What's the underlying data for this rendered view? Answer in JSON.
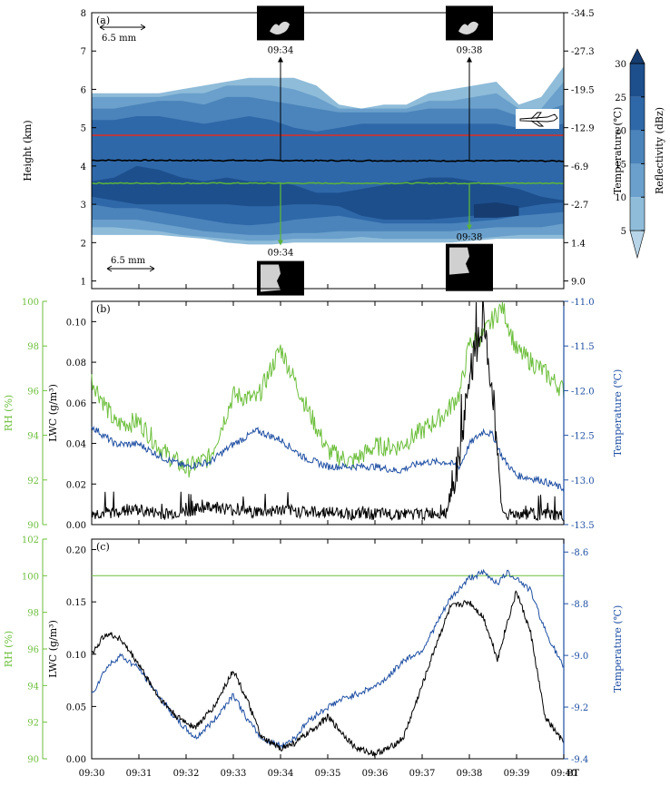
{
  "colors": {
    "lwc": "#000000",
    "rh": "#6dbf3c",
    "temperature": "#1f4fa3",
    "rh_axis": "#6dbf3c",
    "temp_axis": "#1f4fa3",
    "red_line": "#d0312d",
    "green_line": "#5bb43a",
    "refl_levels": [
      "#b7d4e8",
      "#8fbcd9",
      "#6aa0cb",
      "#4b84bb",
      "#2f68a8",
      "#1d4f8d",
      "#163c70"
    ]
  },
  "chart_data": [
    {
      "type": "heatmap",
      "panel_label": "(a)",
      "ylabel": "Height (km)",
      "y2label": "Temperature (℃)",
      "ylim": [
        0.8,
        8
      ],
      "yticks": [
        1,
        2,
        3,
        4,
        5,
        6,
        7,
        8
      ],
      "y2_ticks": [
        {
          "height": 8,
          "label": "-34.5"
        },
        {
          "height": 7,
          "label": "-27.3"
        },
        {
          "height": 6,
          "label": "-19.5"
        },
        {
          "height": 5,
          "label": "-12.9"
        },
        {
          "height": 4,
          "label": "-6.9"
        },
        {
          "height": 3,
          "label": "-2.7"
        },
        {
          "height": 2,
          "label": "1.4"
        },
        {
          "height": 1,
          "label": "9.0"
        }
      ],
      "colorbar": {
        "label": "Reflectivity (dBz)",
        "ticks": [
          5,
          10,
          15,
          20,
          25,
          30
        ]
      },
      "annotations": [
        {
          "text": "09:34",
          "time": 34.0,
          "height": 6.9,
          "position": "above"
        },
        {
          "text": "09:38",
          "time": 38.0,
          "height": 6.9,
          "position": "above"
        },
        {
          "text": "09:34",
          "time": 34.0,
          "height": 1.9,
          "position": "below"
        },
        {
          "text": "09:38",
          "time": 38.0,
          "height": 2.3,
          "position": "below"
        }
      ],
      "scale_bars": [
        {
          "label": "6.5 mm"
        },
        {
          "label": "6.5 mm"
        }
      ],
      "flight_levels": {
        "black_line_km": 4.15,
        "red_line_km": 4.8,
        "green_line_km": 3.55
      },
      "cloud_layers": [
        {
          "dbz": 5,
          "top": [
            5.9,
            5.9,
            5.9,
            5.9,
            6.0,
            6.1,
            6.2,
            6.3,
            6.3,
            6.3,
            6.1,
            5.6,
            5.5,
            5.6,
            5.6,
            5.9,
            6.0,
            6.1,
            6.2,
            5.6,
            5.8,
            6.6
          ],
          "base": [
            2.2,
            2.2,
            2.2,
            2.2,
            2.15,
            2.1,
            2.0,
            1.95,
            1.95,
            2.0,
            2.0,
            2.0,
            2.0,
            2.0,
            2.0,
            2.0,
            2.0,
            2.05,
            2.1,
            2.1,
            2.1,
            2.1
          ]
        },
        {
          "dbz": 10,
          "top": [
            5.8,
            5.8,
            5.8,
            5.8,
            5.9,
            5.9,
            6.1,
            6.1,
            6.1,
            6.0,
            5.8,
            5.5,
            5.5,
            5.5,
            5.5,
            5.7,
            5.7,
            5.8,
            5.9,
            5.5,
            5.5,
            6.2
          ],
          "base": [
            2.4,
            2.4,
            2.35,
            2.3,
            2.2,
            2.15,
            2.1,
            2.05,
            2.05,
            2.1,
            2.1,
            2.1,
            2.15,
            2.1,
            2.1,
            2.1,
            2.1,
            2.1,
            2.15,
            2.2,
            2.2,
            2.2
          ]
        },
        {
          "dbz": 15,
          "top": [
            5.5,
            5.5,
            5.6,
            5.7,
            5.7,
            5.6,
            5.8,
            5.8,
            5.7,
            5.6,
            5.5,
            5.4,
            5.4,
            5.4,
            5.4,
            5.5,
            5.5,
            5.5,
            5.5,
            5.3,
            5.4,
            5.6
          ],
          "base": [
            2.6,
            2.6,
            2.6,
            2.5,
            2.4,
            2.3,
            2.25,
            2.2,
            2.2,
            2.25,
            2.25,
            2.3,
            2.3,
            2.3,
            2.3,
            2.3,
            2.3,
            2.35,
            2.4,
            2.4,
            2.4,
            2.5
          ]
        },
        {
          "dbz": 20,
          "top": [
            5.2,
            5.2,
            5.3,
            5.3,
            5.2,
            5.1,
            5.2,
            5.3,
            5.2,
            5.0,
            4.9,
            5.0,
            5.1,
            5.1,
            5.1,
            5.1,
            5.1,
            5.1,
            5.1,
            5.0,
            5.0,
            5.1
          ],
          "base": [
            3.0,
            2.9,
            2.9,
            2.8,
            2.7,
            2.6,
            2.5,
            2.45,
            2.5,
            2.6,
            2.65,
            2.7,
            2.6,
            2.5,
            2.5,
            2.5,
            2.5,
            2.55,
            2.6,
            2.7,
            2.75,
            2.8
          ]
        },
        {
          "dbz": 25,
          "top": [
            3.6,
            3.7,
            4.0,
            3.9,
            3.7,
            3.6,
            3.7,
            3.6,
            3.6,
            3.5,
            3.3,
            3.3,
            3.4,
            3.5,
            3.6,
            3.7,
            3.7,
            3.6,
            3.5,
            3.4,
            3.2,
            3.1
          ],
          "base": [
            3.2,
            3.1,
            3.0,
            3.0,
            3.0,
            3.0,
            3.0,
            2.95,
            2.95,
            3.0,
            3.0,
            2.95,
            2.7,
            2.6,
            2.6,
            2.6,
            2.65,
            2.7,
            2.8,
            2.9,
            3.0,
            3.05
          ]
        },
        {
          "dbz": 30,
          "top": [
            0,
            0,
            0,
            0,
            0,
            0,
            0,
            0,
            0,
            0,
            0,
            0,
            0,
            0,
            0,
            0,
            0,
            3.0,
            3.05,
            2.95,
            0,
            0
          ],
          "base": [
            0,
            0,
            0,
            0,
            0,
            0,
            0,
            0,
            0,
            0,
            0,
            0,
            0,
            0,
            0,
            0,
            0,
            2.65,
            2.65,
            2.7,
            0,
            0
          ]
        }
      ]
    },
    {
      "type": "line",
      "panel_label": "(b)",
      "ylabel": "LWC (g/m³)",
      "y_left_label": "RH (%)",
      "y2label": "Temperature (℃)",
      "ylim": [
        0,
        0.11
      ],
      "yticks": [
        0.0,
        0.02,
        0.04,
        0.06,
        0.08,
        0.1
      ],
      "rh_lim": [
        90,
        100
      ],
      "rh_ticks": [
        90,
        92,
        94,
        96,
        98,
        100
      ],
      "temp_lim": [
        -13.5,
        -11.0
      ],
      "temp_ticks": [
        -13.5,
        -13.0,
        -12.5,
        -12.0,
        -11.5,
        -11.0
      ],
      "x": [
        30.0,
        30.5,
        31.0,
        31.5,
        32.0,
        32.5,
        33.0,
        33.5,
        34.0,
        34.5,
        35.0,
        35.5,
        36.0,
        36.5,
        37.0,
        37.5,
        37.8,
        38.0,
        38.3,
        38.5,
        38.7,
        39.0,
        39.5,
        40.0
      ],
      "series": [
        {
          "key": "rh",
          "values": [
            96.5,
            94.5,
            94.6,
            93.3,
            92.5,
            93.0,
            95.8,
            95.6,
            97.9,
            95.5,
            93.3,
            92.8,
            93.5,
            93.5,
            94.2,
            95.0,
            95.9,
            98.1,
            98.5,
            99.2,
            99.8,
            97.8,
            97.0,
            96.0
          ]
        },
        {
          "key": "temperature",
          "values": [
            -12.4,
            -12.6,
            -12.6,
            -12.75,
            -12.85,
            -12.8,
            -12.6,
            -12.45,
            -12.55,
            -12.75,
            -12.85,
            -12.85,
            -12.85,
            -12.9,
            -12.8,
            -12.8,
            -12.85,
            -12.6,
            -12.45,
            -12.5,
            -12.75,
            -12.95,
            -13.0,
            -13.1
          ]
        },
        {
          "key": "lwc",
          "values": [
            0.004,
            0.005,
            0.006,
            0.004,
            0.005,
            0.008,
            0.006,
            0.005,
            0.006,
            0.005,
            0.005,
            0.004,
            0.004,
            0.004,
            0.004,
            0.005,
            0.03,
            0.07,
            0.095,
            0.06,
            0.004,
            0.004,
            0.004,
            0.003
          ]
        }
      ]
    },
    {
      "type": "line",
      "panel_label": "(c)",
      "ylabel": "LWC (g/m³)",
      "y_left_label": "RH (%)",
      "y2label": "Temperature (℃)",
      "xlabel": "BT",
      "ylim": [
        0,
        0.21
      ],
      "yticks": [
        0.0,
        0.05,
        0.1,
        0.15,
        0.2
      ],
      "rh_lim": [
        90,
        102
      ],
      "rh_ticks": [
        90,
        92,
        94,
        96,
        98,
        100,
        102
      ],
      "temp_lim": [
        -9.4,
        -8.55
      ],
      "temp_ticks": [
        -9.4,
        -9.2,
        -9.0,
        -8.8,
        -8.6
      ],
      "x_ticks": [
        "09:30",
        "09:31",
        "09:32",
        "09:33",
        "09:34",
        "09:35",
        "09:36",
        "09:37",
        "09:38",
        "09:39",
        "09:40"
      ],
      "x": [
        30.0,
        30.3,
        30.6,
        31.0,
        31.4,
        31.8,
        32.2,
        32.6,
        33.0,
        33.3,
        33.6,
        34.0,
        34.3,
        34.6,
        35.0,
        35.3,
        35.6,
        36.0,
        36.3,
        36.6,
        37.0,
        37.3,
        37.6,
        38.0,
        38.3,
        38.6,
        38.8,
        39.0,
        39.3,
        39.6,
        40.0
      ],
      "series": [
        {
          "key": "rh",
          "values": [
            100,
            100,
            100,
            100,
            100,
            100,
            100,
            100,
            100,
            100,
            100,
            100,
            100,
            100,
            100,
            100,
            100,
            100,
            100,
            100,
            100,
            100,
            100,
            100,
            100,
            100,
            100,
            100,
            100,
            100,
            100
          ]
        },
        {
          "key": "temperature",
          "values": [
            -9.15,
            -9.05,
            -9.0,
            -9.05,
            -9.15,
            -9.25,
            -9.32,
            -9.25,
            -9.15,
            -9.25,
            -9.32,
            -9.35,
            -9.32,
            -9.25,
            -9.2,
            -9.17,
            -9.15,
            -9.12,
            -9.08,
            -9.02,
            -8.98,
            -8.88,
            -8.78,
            -8.7,
            -8.68,
            -8.72,
            -8.68,
            -8.7,
            -8.75,
            -8.9,
            -9.05
          ]
        },
        {
          "key": "lwc",
          "values": [
            0.1,
            0.12,
            0.115,
            0.09,
            0.06,
            0.04,
            0.03,
            0.05,
            0.085,
            0.055,
            0.02,
            0.01,
            0.015,
            0.025,
            0.04,
            0.025,
            0.01,
            0.005,
            0.01,
            0.02,
            0.07,
            0.11,
            0.145,
            0.15,
            0.135,
            0.095,
            0.13,
            0.16,
            0.12,
            0.04,
            0.015
          ]
        }
      ]
    }
  ]
}
